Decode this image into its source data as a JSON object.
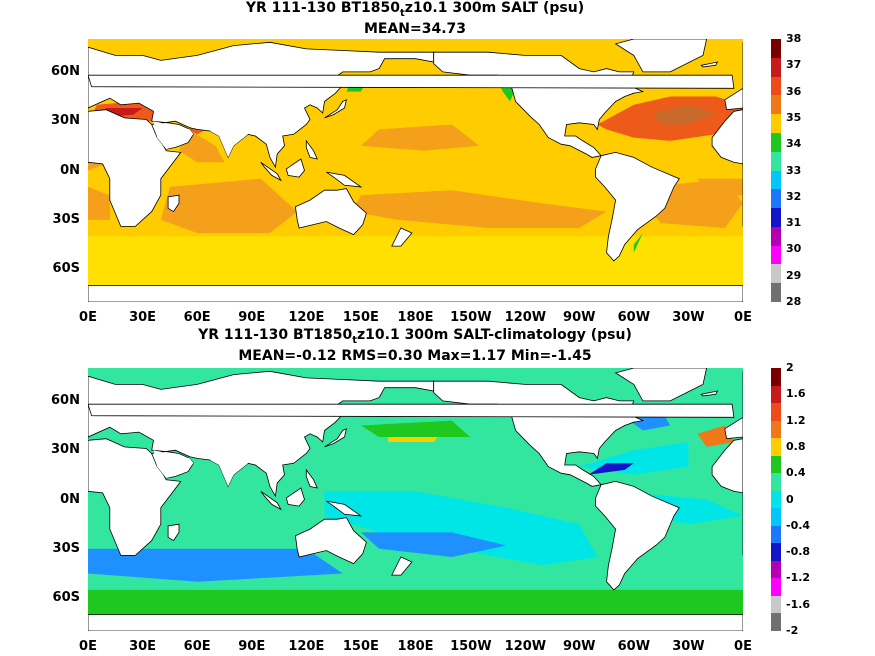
{
  "panels": [
    {
      "title_main": "YR 111-130 BT1850",
      "title_sub": "t",
      "title_rest": "z10.1 300m SALT (psu)",
      "stats": "MEAN=34.73",
      "colorbar": {
        "labels": [
          "38",
          "37",
          "36",
          "35",
          "34",
          "33",
          "32",
          "31",
          "30",
          "29",
          "28"
        ],
        "colors": [
          "#7a0000",
          "#c81a1a",
          "#ee4a1a",
          "#f07818",
          "#ffcc00",
          "#1ec81e",
          "#32e6a0",
          "#00c8ff",
          "#1e78ff",
          "#1414c8",
          "#b400b4",
          "#ff00ff",
          "#c8c8c8",
          "#707070"
        ]
      }
    },
    {
      "title_main": "YR 111-130 BT1850",
      "title_sub": "t",
      "title_rest": "z10.1 300m SALT-climatology (psu)",
      "stats": "MEAN=-0.12   RMS=0.30   Max=1.17   Min=-1.45",
      "colorbar": {
        "labels": [
          "2",
          "1.6",
          "1.2",
          "0.8",
          "0.4",
          "0",
          "-0.4",
          "-0.8",
          "-1.2",
          "-1.6",
          "-2"
        ],
        "colors": [
          "#7a0000",
          "#c81a1a",
          "#ee4a1a",
          "#f07818",
          "#ffcc00",
          "#1ec81e",
          "#32e6a0",
          "#00e6e6",
          "#00c8ff",
          "#1e78ff",
          "#1414c8",
          "#b400b4",
          "#ff00ff",
          "#c8c8c8",
          "#707070"
        ]
      }
    }
  ],
  "axes": {
    "x_ticks": [
      "0E",
      "30E",
      "60E",
      "90E",
      "120E",
      "150E",
      "180E",
      "150W",
      "120W",
      "90W",
      "60W",
      "30W",
      "0E"
    ],
    "y_ticks": [
      "60N",
      "30N",
      "0N",
      "30S",
      "60S"
    ]
  },
  "palette": {
    "top_bg": "#ffcc00",
    "top_band": "#ffe000",
    "top_orange": "#f4a01a",
    "top_red": "#ee5a1a",
    "top_green": "#1ec81e",
    "bot_bg": "#32e6a0",
    "bot_cyan": "#00e6e6",
    "bot_blue": "#1e90ff",
    "bot_yellow": "#ffcc00",
    "bot_green": "#1ec81e",
    "land": "#ffffff",
    "coast": "#000000"
  }
}
